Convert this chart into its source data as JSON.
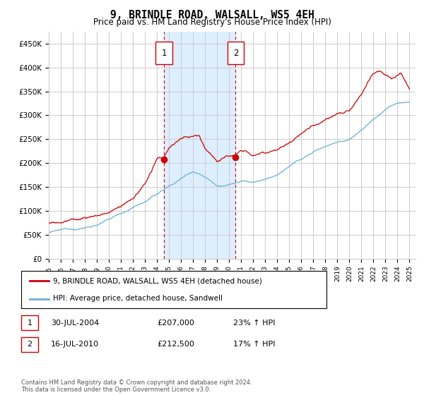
{
  "title": "9, BRINDLE ROAD, WALSALL, WS5 4EH",
  "subtitle": "Price paid vs. HM Land Registry's House Price Index (HPI)",
  "ylabel_ticks": [
    "£0",
    "£50K",
    "£100K",
    "£150K",
    "£200K",
    "£250K",
    "£300K",
    "£350K",
    "£400K",
    "£450K"
  ],
  "ytick_values": [
    0,
    50000,
    100000,
    150000,
    200000,
    250000,
    300000,
    350000,
    400000,
    450000
  ],
  "ylim": [
    0,
    475000
  ],
  "xlim_start": 1995.0,
  "xlim_end": 2025.5,
  "marker1": {
    "year": 2004.58,
    "value": 207000,
    "label": "1",
    "date": "30-JUL-2004",
    "price": "£207,000",
    "hpi": "23% ↑ HPI"
  },
  "marker2": {
    "year": 2010.54,
    "value": 212500,
    "label": "2",
    "date": "16-JUL-2010",
    "price": "£212,500",
    "hpi": "17% ↑ HPI"
  },
  "legend_line1": "9, BRINDLE ROAD, WALSALL, WS5 4EH (detached house)",
  "legend_line2": "HPI: Average price, detached house, Sandwell",
  "footnote": "Contains HM Land Registry data © Crown copyright and database right 2024.\nThis data is licensed under the Open Government Licence v3.0.",
  "line1_color": "#cc0000",
  "line2_color": "#6baed6",
  "shade_color": "#ddeeff",
  "marker_box_color": "#cc0000",
  "grid_color": "#cccccc",
  "background_color": "#ffffff",
  "hpi_anchors_x": [
    1995,
    1996,
    1997,
    1998,
    1999,
    2000,
    2001,
    2002,
    2003,
    2004,
    2005,
    2006,
    2007,
    2008,
    2009,
    2010,
    2011,
    2012,
    2013,
    2014,
    2015,
    2016,
    2017,
    2018,
    2019,
    2020,
    2021,
    2022,
    2023,
    2024,
    2025
  ],
  "hpi_anchors_y": [
    55000,
    58000,
    61000,
    65000,
    72000,
    82000,
    95000,
    108000,
    120000,
    135000,
    152000,
    168000,
    185000,
    175000,
    158000,
    162000,
    168000,
    165000,
    170000,
    180000,
    195000,
    210000,
    225000,
    238000,
    248000,
    252000,
    272000,
    295000,
    315000,
    328000,
    330000
  ],
  "price_anchors_x": [
    1995,
    1996,
    1997,
    1998,
    1999,
    2000,
    2001,
    2002,
    2003,
    2004,
    2004.58,
    2005,
    2006,
    2007,
    2007.5,
    2008,
    2009,
    2010,
    2010.54,
    2011,
    2012,
    2013,
    2014,
    2015,
    2016,
    2017,
    2018,
    2019,
    2020,
    2021,
    2022,
    2022.5,
    2023,
    2023.5,
    2024,
    2024.3,
    2024.8,
    2025
  ],
  "price_anchors_y": [
    75000,
    78000,
    82000,
    87000,
    92000,
    100000,
    112000,
    128000,
    158000,
    207000,
    207000,
    230000,
    248000,
    250000,
    248000,
    225000,
    200000,
    210000,
    212500,
    218000,
    210000,
    215000,
    228000,
    240000,
    258000,
    275000,
    295000,
    308000,
    315000,
    345000,
    385000,
    395000,
    390000,
    385000,
    395000,
    400000,
    380000,
    368000
  ]
}
